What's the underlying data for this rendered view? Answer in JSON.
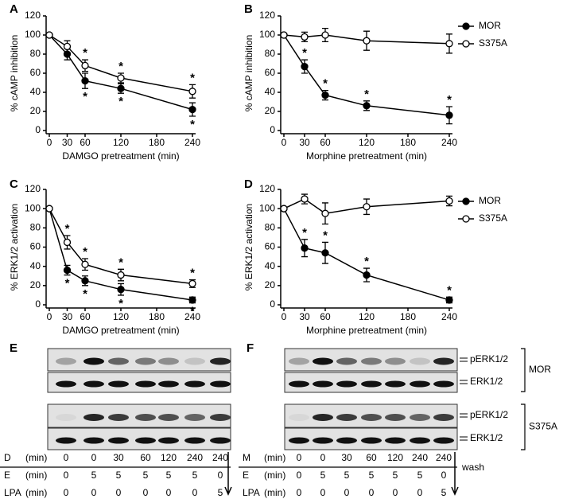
{
  "chart_data": [
    {
      "type": "line",
      "panel": "A",
      "xlabel": "DAMGO  pretreatment (min)",
      "ylabel": "% cAMP inhibition",
      "x": [
        0,
        30,
        60,
        120,
        240
      ],
      "xlim": [
        0,
        240
      ],
      "xticks": [
        0,
        30,
        60,
        120,
        180,
        240
      ],
      "ylim": [
        0,
        120
      ],
      "yticks": [
        0,
        20,
        40,
        60,
        80,
        100,
        120
      ],
      "legend": false,
      "sig_label": "*",
      "series": [
        {
          "name": "MOR",
          "color": "#000000",
          "fill": "#000000",
          "values": [
            100,
            80,
            52,
            44,
            22
          ],
          "errors": [
            0,
            6,
            8,
            5,
            7
          ],
          "significant": [
            false,
            false,
            true,
            true,
            true
          ]
        },
        {
          "name": "S375A",
          "color": "#000000",
          "fill": "#ffffff",
          "values": [
            100,
            88,
            68,
            55,
            41
          ],
          "errors": [
            0,
            6,
            6,
            5,
            7
          ],
          "significant": [
            false,
            false,
            true,
            true,
            true
          ]
        }
      ]
    },
    {
      "type": "line",
      "panel": "B",
      "xlabel": "Morphine  pretreatment (min)",
      "ylabel": "% cAMP inhibition",
      "x": [
        0,
        30,
        60,
        120,
        240
      ],
      "xlim": [
        0,
        240
      ],
      "xticks": [
        0,
        30,
        60,
        120,
        180,
        240
      ],
      "ylim": [
        0,
        120
      ],
      "yticks": [
        0,
        20,
        40,
        60,
        80,
        100,
        120
      ],
      "legend": true,
      "sig_label": "*",
      "series": [
        {
          "name": "MOR",
          "color": "#000000",
          "fill": "#000000",
          "values": [
            100,
            67,
            37,
            26,
            16
          ],
          "errors": [
            0,
            7,
            5,
            5,
            9
          ],
          "significant": [
            false,
            true,
            true,
            true,
            true
          ]
        },
        {
          "name": "S375A",
          "color": "#000000",
          "fill": "#ffffff",
          "values": [
            100,
            98,
            100,
            94,
            91
          ],
          "errors": [
            0,
            5,
            7,
            10,
            10
          ],
          "significant": [
            false,
            false,
            false,
            false,
            false
          ]
        }
      ]
    },
    {
      "type": "line",
      "panel": "C",
      "xlabel": "DAMGO  pretreatment (min)",
      "ylabel": "% ERK1/2 activation",
      "x": [
        0,
        30,
        60,
        120,
        240
      ],
      "xlim": [
        0,
        240
      ],
      "xticks": [
        0,
        30,
        60,
        120,
        180,
        240
      ],
      "ylim": [
        0,
        120
      ],
      "yticks": [
        0,
        20,
        40,
        60,
        80,
        100,
        120
      ],
      "legend": false,
      "sig_label": "*",
      "series": [
        {
          "name": "MOR",
          "color": "#000000",
          "fill": "#000000",
          "values": [
            100,
            36,
            25,
            16,
            5
          ],
          "errors": [
            0,
            5,
            5,
            6,
            3
          ],
          "significant": [
            false,
            true,
            true,
            true,
            true
          ]
        },
        {
          "name": "S375A",
          "color": "#000000",
          "fill": "#ffffff",
          "values": [
            100,
            65,
            42,
            31,
            22
          ],
          "errors": [
            0,
            7,
            6,
            6,
            4
          ],
          "significant": [
            false,
            true,
            true,
            true,
            true
          ]
        }
      ]
    },
    {
      "type": "line",
      "panel": "D",
      "xlabel": "Morphine  pretreatment (min)",
      "ylabel": "% ERK1/2 activation",
      "x": [
        0,
        30,
        60,
        120,
        240
      ],
      "xlim": [
        0,
        240
      ],
      "xticks": [
        0,
        30,
        60,
        120,
        180,
        240
      ],
      "ylim": [
        0,
        120
      ],
      "yticks": [
        0,
        20,
        40,
        60,
        80,
        100,
        120
      ],
      "legend": true,
      "sig_label": "*",
      "series": [
        {
          "name": "MOR",
          "color": "#000000",
          "fill": "#000000",
          "values": [
            100,
            59,
            54,
            31,
            5
          ],
          "errors": [
            0,
            9,
            11,
            7,
            3
          ],
          "significant": [
            false,
            true,
            true,
            true,
            true
          ]
        },
        {
          "name": "S375A",
          "color": "#000000",
          "fill": "#ffffff",
          "values": [
            100,
            110,
            95,
            102,
            108
          ],
          "errors": [
            0,
            5,
            11,
            8,
            5
          ],
          "significant": [
            false,
            false,
            false,
            false,
            false
          ]
        }
      ]
    }
  ],
  "blot_labels": {
    "phospho": "pERK1/2",
    "total": "ERK1/2",
    "groups": [
      "MOR",
      "S375A"
    ]
  },
  "blots": [
    {
      "panel": "E",
      "rows": [
        {
          "header": "D",
          "unit": "(min)",
          "values": [
            "0",
            "0",
            "30",
            "60",
            "120",
            "240",
            "240"
          ]
        },
        {
          "header": "E",
          "unit": "(min)",
          "values": [
            "0",
            "5",
            "5",
            "5",
            "5",
            "5",
            "0"
          ]
        },
        {
          "header": "LPA",
          "unit": "(min)",
          "values": [
            "0",
            "0",
            "0",
            "0",
            "0",
            "0",
            "5"
          ]
        }
      ]
    },
    {
      "panel": "F",
      "wash": "wash",
      "rows": [
        {
          "header": "M",
          "unit": "(min)",
          "values": [
            "0",
            "0",
            "30",
            "60",
            "120",
            "240",
            "240"
          ]
        },
        {
          "header": "E",
          "unit": "(min)",
          "values": [
            "0",
            "5",
            "5",
            "5",
            "5",
            "5",
            "0"
          ]
        },
        {
          "header": "LPA",
          "unit": "(min)",
          "values": [
            "0",
            "0",
            "0",
            "0",
            "0",
            "0",
            "5"
          ]
        }
      ]
    }
  ]
}
